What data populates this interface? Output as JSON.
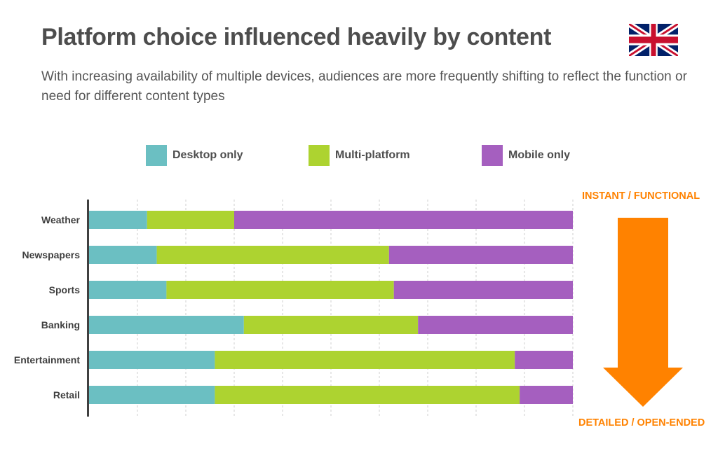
{
  "header": {
    "title": "Platform choice influenced heavily by content",
    "subtitle": "With increasing availability of multiple devices, audiences are more frequently shifting to reflect the function or need for different content types"
  },
  "flag": {
    "icon": "uk-flag-icon"
  },
  "colors": {
    "desktop": "#6bbfc2",
    "multi": "#add330",
    "mobile": "#a55fbf",
    "accent": "#ff8200",
    "axis": "#404040",
    "grid": "#cfcfcf"
  },
  "annotations": {
    "top": "INSTANT / FUNCTIONAL",
    "bottom": "DETAILED / OPEN-ENDED",
    "arrow_icon": "down-arrow-icon"
  },
  "chart_data": {
    "type": "bar",
    "orientation": "horizontal",
    "stacked": true,
    "normalized_total": 100,
    "categories": [
      "Weather",
      "Newspapers",
      "Sports",
      "Banking",
      "Entertainment",
      "Retail"
    ],
    "series": [
      {
        "name": "Desktop only",
        "values": [
          12,
          14,
          16,
          32,
          26,
          26
        ]
      },
      {
        "name": "Multi-platform",
        "values": [
          18,
          48,
          47,
          36,
          62,
          63
        ]
      },
      {
        "name": "Mobile only",
        "values": [
          70,
          38,
          37,
          32,
          12,
          11
        ]
      }
    ],
    "xlim": [
      0,
      100
    ],
    "grid": true,
    "legend_position": "top"
  }
}
